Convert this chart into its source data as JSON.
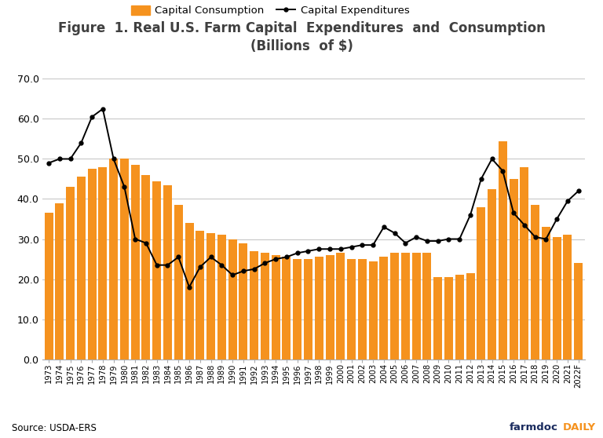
{
  "title_line1": "Figure  1. Real U.S. Farm Capital  Expenditures  and  Consumption",
  "title_line2": "(Billions  of $)",
  "source": "Source: USDA-ERS",
  "year_labels": [
    "1973",
    "1974",
    "1975",
    "1976",
    "1977",
    "1978",
    "1979",
    "1980",
    "1981",
    "1982",
    "1983",
    "1984",
    "1985",
    "1986",
    "1987",
    "1988",
    "1989",
    "1990",
    "1991",
    "1992",
    "1993",
    "1994",
    "1995",
    "1996",
    "1997",
    "1998",
    "1999",
    "2000",
    "2001",
    "2002",
    "2003",
    "2004",
    "2005",
    "2006",
    "2007",
    "2008",
    "2009",
    "2010",
    "2011",
    "2012",
    "2013",
    "2014",
    "2015",
    "2016",
    "2017",
    "2018",
    "2019",
    "2020",
    "2021",
    "2022F"
  ],
  "capital_consumption": [
    36.5,
    39.0,
    43.0,
    45.5,
    47.5,
    48.0,
    50.0,
    50.0,
    48.5,
    46.0,
    44.5,
    43.5,
    38.5,
    34.0,
    32.0,
    31.5,
    31.0,
    30.0,
    29.0,
    27.0,
    26.5,
    26.0,
    25.5,
    25.0,
    25.0,
    25.5,
    26.0,
    26.5,
    25.0,
    25.0,
    24.5,
    25.5,
    26.5,
    26.5,
    26.5,
    26.5,
    20.5,
    20.5,
    21.0,
    21.5,
    38.0,
    42.5,
    54.5,
    45.0,
    48.0,
    38.5,
    33.0,
    30.5,
    31.0,
    24.0
  ],
  "capital_expenditures": [
    49.0,
    50.0,
    50.0,
    54.0,
    60.5,
    62.5,
    50.0,
    43.0,
    30.0,
    29.0,
    23.5,
    23.5,
    25.5,
    18.0,
    23.0,
    25.5,
    23.5,
    21.0,
    22.0,
    22.5,
    24.0,
    25.0,
    25.5,
    26.5,
    27.0,
    27.5,
    27.5,
    27.5,
    28.0,
    28.5,
    28.5,
    33.0,
    31.5,
    29.0,
    30.5,
    29.5,
    29.5,
    30.0,
    30.0,
    36.0,
    45.0,
    50.0,
    47.0,
    36.5,
    33.5,
    30.5,
    30.0,
    35.0,
    39.5,
    42.0
  ],
  "bar_color": "#F5921E",
  "line_color": "#000000",
  "title_color": "#404040",
  "background_color": "#ffffff",
  "ylim": [
    0,
    70
  ],
  "yticks": [
    0.0,
    10.0,
    20.0,
    30.0,
    40.0,
    50.0,
    60.0,
    70.0
  ],
  "grid_color": "#c8c8c8",
  "legend_consumption_label": "Capital Consumption",
  "legend_expenditures_label": "Capital Expenditures",
  "farmdoc_color": "#1a2b5e",
  "daily_color": "#F5921E"
}
